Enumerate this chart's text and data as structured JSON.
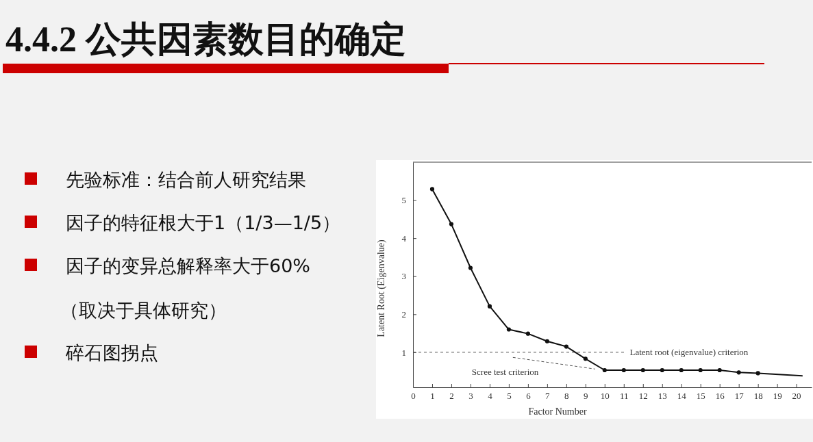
{
  "chart_data": {
    "type": "line",
    "title": "4.4.2 公共因素数目的确定",
    "annotations": [
      "先验标准：结合前人研究结果",
      "因子的特征根大于1（1/3—1/5）",
      "因子的变异总解释率大于60%",
      "（取决于具体研究）",
      "碎石图拐点",
      {
        "text": "Scree test criterion",
        "x": 9.5,
        "y": 0.56
      }
    ],
    "xlabel": "Factor Number",
    "ylabel": "Latent Root (Eigenvalue)",
    "xlim": [
      0,
      20.8
    ],
    "ylim": [
      0.08,
      6
    ],
    "xticks": [
      0,
      1,
      2,
      3,
      4,
      5,
      6,
      7,
      8,
      9,
      10,
      11,
      12,
      13,
      14,
      15,
      16,
      17,
      18,
      19,
      20
    ],
    "yticks": [
      1,
      2,
      3,
      4,
      5
    ],
    "marker": "circle",
    "line_style": "solid",
    "series": [
      {
        "color": "#111111",
        "x": [
          1,
          2,
          3,
          4,
          5,
          6,
          7,
          8,
          9,
          10,
          11,
          12,
          13,
          14,
          15,
          16,
          17,
          18
        ],
        "values": [
          5.29,
          4.37,
          3.22,
          2.21,
          1.6,
          1.49,
          1.29,
          1.15,
          0.83,
          0.53,
          0.53,
          0.53,
          0.53,
          0.53,
          0.53,
          0.53,
          0.47,
          0.45
        ]
      },
      {
        "color": "#111111",
        "marker": "none",
        "x": [
          18,
          20.3
        ],
        "values": [
          0.45,
          0.38
        ]
      }
    ],
    "ref_lines": [
      {
        "axis": "y",
        "value": 1,
        "label": "Latent root (eigenvalue) criterion",
        "color": "#555555",
        "line_style": "dashed"
      }
    ]
  }
}
